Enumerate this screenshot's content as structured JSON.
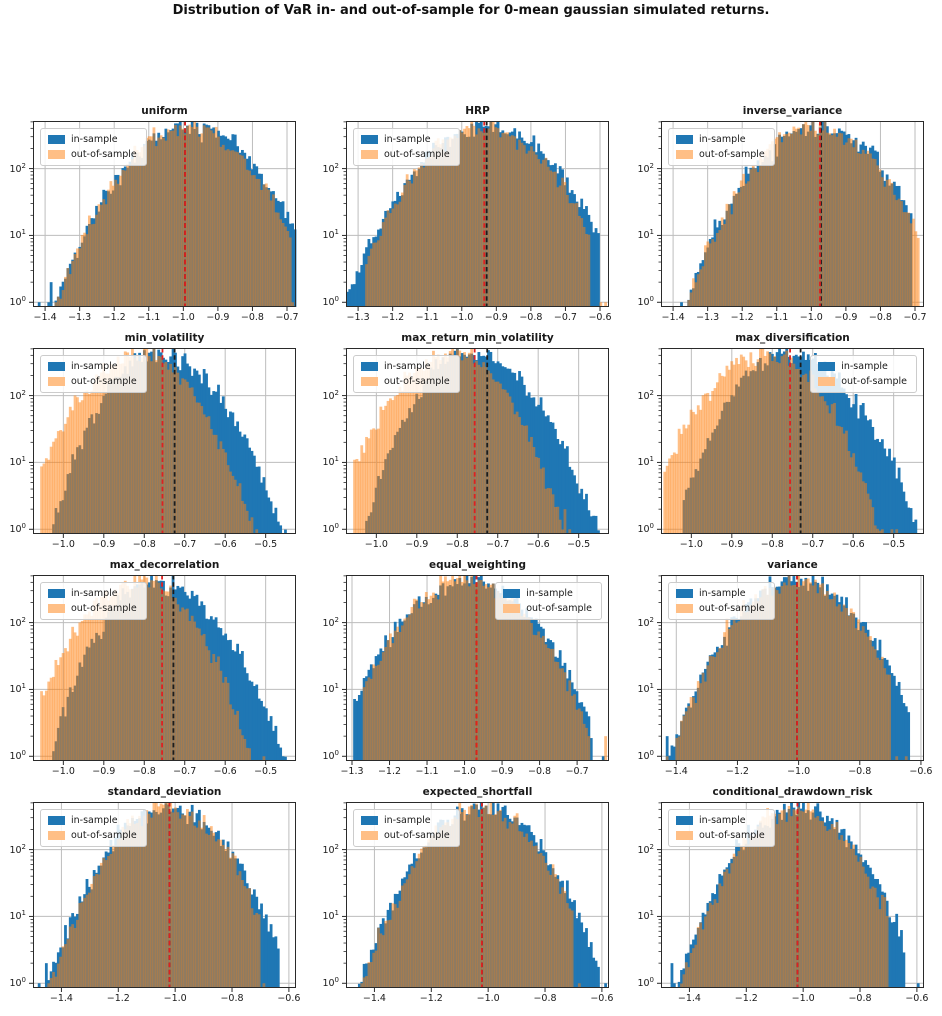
{
  "chart_data": {
    "type": "histogram-grid",
    "suptitle": "Distribution of VaR in- and out-of-sample for 0-mean gaussian simulated returns.",
    "y_scale": "log",
    "y_tick_exponents": [
      0,
      1,
      2
    ],
    "ylim": [
      0.85,
      515
    ],
    "bins": 110,
    "legend_labels": {
      "in_sample": "in-sample",
      "out_of_sample": "out-of-sample"
    },
    "colors": {
      "in_sample": "#1f77b4",
      "out_of_sample": "#ff7f0e",
      "out_of_sample_opacity": 0.5,
      "out_of_sample_legend_swatch": "#ffbf86",
      "red_vline": "#e02020",
      "black_vline": "#1c1c1c",
      "grid": "#bdbdbd",
      "spine": "#2a2a2a",
      "background": "#ffffff"
    },
    "subplots": [
      {
        "title": "uniform",
        "xlim": [
          -1.435,
          -0.674
        ],
        "xticks": [
          -1.4,
          -1.3,
          -1.2,
          -1.1,
          -1.0,
          -0.9,
          -0.8,
          -0.7
        ],
        "vline_red": -0.995,
        "vline_black": -0.995,
        "legend_pos": "left",
        "series": {
          "in_sample": {
            "mu": -0.98,
            "sigma_l": 0.112,
            "sigma_r": 0.112,
            "peak": 430,
            "min": -1.44,
            "max": -0.66
          },
          "out_of_sample": {
            "mu": -0.99,
            "sigma_l": 0.108,
            "sigma_r": 0.108,
            "peak": 420,
            "min": -1.38,
            "max": -0.69
          }
        }
      },
      {
        "title": "HRP",
        "xlim": [
          -1.335,
          -0.574
        ],
        "xticks": [
          -1.3,
          -1.2,
          -1.1,
          -1.0,
          -0.9,
          -0.8,
          -0.7,
          -0.6
        ],
        "vline_red": -0.935,
        "vline_black": -0.928,
        "legend_pos": "left",
        "series": {
          "in_sample": {
            "mu": -0.928,
            "sigma_l": 0.118,
            "sigma_r": 0.118,
            "peak": 420,
            "min": -1.34,
            "max": -0.6
          },
          "out_of_sample": {
            "mu": -0.935,
            "sigma_l": 0.112,
            "sigma_r": 0.112,
            "peak": 415,
            "min": -1.28,
            "max": -0.63
          }
        }
      },
      {
        "title": "inverse_variance",
        "xlim": [
          -1.435,
          -0.674
        ],
        "xticks": [
          -1.4,
          -1.3,
          -1.2,
          -1.1,
          -1.0,
          -0.9,
          -0.8,
          -0.7
        ],
        "vline_red": -0.975,
        "vline_black": -0.972,
        "legend_pos": "left",
        "series": {
          "in_sample": {
            "mu": -0.98,
            "sigma_l": 0.11,
            "sigma_r": 0.11,
            "peak": 430,
            "min": -1.4,
            "max": -0.71
          },
          "out_of_sample": {
            "mu": -0.985,
            "sigma_l": 0.108,
            "sigma_r": 0.108,
            "peak": 425,
            "min": -1.36,
            "max": -0.69
          }
        }
      },
      {
        "title": "min_volatility",
        "xlim": [
          -1.075,
          -0.425
        ],
        "xticks": [
          -1.0,
          -0.9,
          -0.8,
          -0.7,
          -0.6,
          -0.5
        ],
        "vline_red": -0.755,
        "vline_black": -0.725,
        "legend_pos": "left",
        "series": {
          "in_sample": {
            "mu": -0.77,
            "sigma_l": 0.075,
            "sigma_r": 0.09,
            "peak": 420,
            "min": -1.03,
            "max": -0.45
          },
          "out_of_sample": {
            "mu": -0.805,
            "sigma_l": 0.088,
            "sigma_r": 0.078,
            "peak": 420,
            "min": -1.06,
            "max": -0.5
          }
        }
      },
      {
        "title": "max_return_min_volatility",
        "xlim": [
          -1.075,
          -0.425
        ],
        "xticks": [
          -1.0,
          -0.9,
          -0.8,
          -0.7,
          -0.6,
          -0.5
        ],
        "vline_red": -0.757,
        "vline_black": -0.726,
        "legend_pos": "left",
        "series": {
          "in_sample": {
            "mu": -0.772,
            "sigma_l": 0.075,
            "sigma_r": 0.092,
            "peak": 415,
            "min": -1.03,
            "max": -0.45
          },
          "out_of_sample": {
            "mu": -0.807,
            "sigma_l": 0.089,
            "sigma_r": 0.077,
            "peak": 415,
            "min": -1.06,
            "max": -0.49
          }
        }
      },
      {
        "title": "max_diversification",
        "xlim": [
          -1.075,
          -0.425
        ],
        "xticks": [
          -1.0,
          -0.9,
          -0.8,
          -0.7,
          -0.6,
          -0.5
        ],
        "vline_red": -0.756,
        "vline_black": -0.73,
        "legend_pos": "right",
        "series": {
          "in_sample": {
            "mu": -0.768,
            "sigma_l": 0.078,
            "sigma_r": 0.095,
            "peak": 420,
            "min": -1.02,
            "max": -0.44
          },
          "out_of_sample": {
            "mu": -0.812,
            "sigma_l": 0.09,
            "sigma_r": 0.08,
            "peak": 418,
            "min": -1.07,
            "max": -0.49
          }
        }
      },
      {
        "title": "max_decorrelation",
        "xlim": [
          -1.075,
          -0.425
        ],
        "xticks": [
          -1.0,
          -0.9,
          -0.8,
          -0.7,
          -0.6,
          -0.5
        ],
        "vline_red": -0.756,
        "vline_black": -0.728,
        "legend_pos": "left",
        "series": {
          "in_sample": {
            "mu": -0.772,
            "sigma_l": 0.076,
            "sigma_r": 0.091,
            "peak": 418,
            "min": -1.03,
            "max": -0.45
          },
          "out_of_sample": {
            "mu": -0.806,
            "sigma_l": 0.088,
            "sigma_r": 0.077,
            "peak": 418,
            "min": -1.06,
            "max": -0.49
          }
        }
      },
      {
        "title": "equal_weighting",
        "xlim": [
          -1.316,
          -0.615
        ],
        "xticks": [
          -1.3,
          -1.2,
          -1.1,
          -1.0,
          -0.9,
          -0.8,
          -0.7
        ],
        "vline_red": -0.968,
        "vline_black": -0.968,
        "legend_pos": "right",
        "series": {
          "in_sample": {
            "mu": -0.99,
            "sigma_l": 0.105,
            "sigma_r": 0.105,
            "peak": 425,
            "min": -1.3,
            "max": -0.66
          },
          "out_of_sample": {
            "mu": -0.995,
            "sigma_l": 0.102,
            "sigma_r": 0.102,
            "peak": 420,
            "min": -1.27,
            "max": -0.67
          }
        }
      },
      {
        "title": "variance",
        "xlim": [
          -1.45,
          -0.59
        ],
        "xticks": [
          -1.4,
          -1.2,
          -1.0,
          -0.8,
          -0.6
        ],
        "vline_red": -1.005,
        "vline_black": -1.005,
        "legend_pos": "left",
        "series": {
          "in_sample": {
            "mu": -1.005,
            "sigma_l": 0.122,
            "sigma_r": 0.122,
            "peak": 430,
            "min": -1.44,
            "max": -0.64
          },
          "out_of_sample": {
            "mu": -1.01,
            "sigma_l": 0.118,
            "sigma_r": 0.118,
            "peak": 425,
            "min": -1.4,
            "max": -0.7
          }
        }
      },
      {
        "title": "standard_deviation",
        "xlim": [
          -1.5,
          -0.575
        ],
        "xticks": [
          -1.4,
          -1.2,
          -1.0,
          -0.8,
          -0.6
        ],
        "vline_red": -1.02,
        "vline_black": -1.02,
        "legend_pos": "left",
        "series": {
          "in_sample": {
            "mu": -1.02,
            "sigma_l": 0.123,
            "sigma_r": 0.123,
            "peak": 430,
            "min": -1.49,
            "max": -0.63
          },
          "out_of_sample": {
            "mu": -1.025,
            "sigma_l": 0.118,
            "sigma_r": 0.118,
            "peak": 425,
            "min": -1.45,
            "max": -0.7
          }
        }
      },
      {
        "title": "expected_shortfall",
        "xlim": [
          -1.5,
          -0.575
        ],
        "xticks": [
          -1.4,
          -1.2,
          -1.0,
          -0.8,
          -0.6
        ],
        "vline_red": -1.022,
        "vline_black": -1.022,
        "legend_pos": "left",
        "series": {
          "in_sample": {
            "mu": -1.022,
            "sigma_l": 0.124,
            "sigma_r": 0.124,
            "peak": 430,
            "min": -1.48,
            "max": -0.61
          },
          "out_of_sample": {
            "mu": -1.028,
            "sigma_l": 0.118,
            "sigma_r": 0.118,
            "peak": 425,
            "min": -1.44,
            "max": -0.7
          }
        }
      },
      {
        "title": "conditional_drawdown_risk",
        "xlim": [
          -1.5,
          -0.575
        ],
        "xticks": [
          -1.4,
          -1.2,
          -1.0,
          -0.8,
          -0.6
        ],
        "vline_red": -1.02,
        "vline_black": -1.02,
        "legend_pos": "left",
        "series": {
          "in_sample": {
            "mu": -1.02,
            "sigma_l": 0.122,
            "sigma_r": 0.122,
            "peak": 430,
            "min": -1.47,
            "max": -0.64
          },
          "out_of_sample": {
            "mu": -1.025,
            "sigma_l": 0.117,
            "sigma_r": 0.117,
            "peak": 425,
            "min": -1.43,
            "max": -0.7
          }
        }
      }
    ]
  }
}
